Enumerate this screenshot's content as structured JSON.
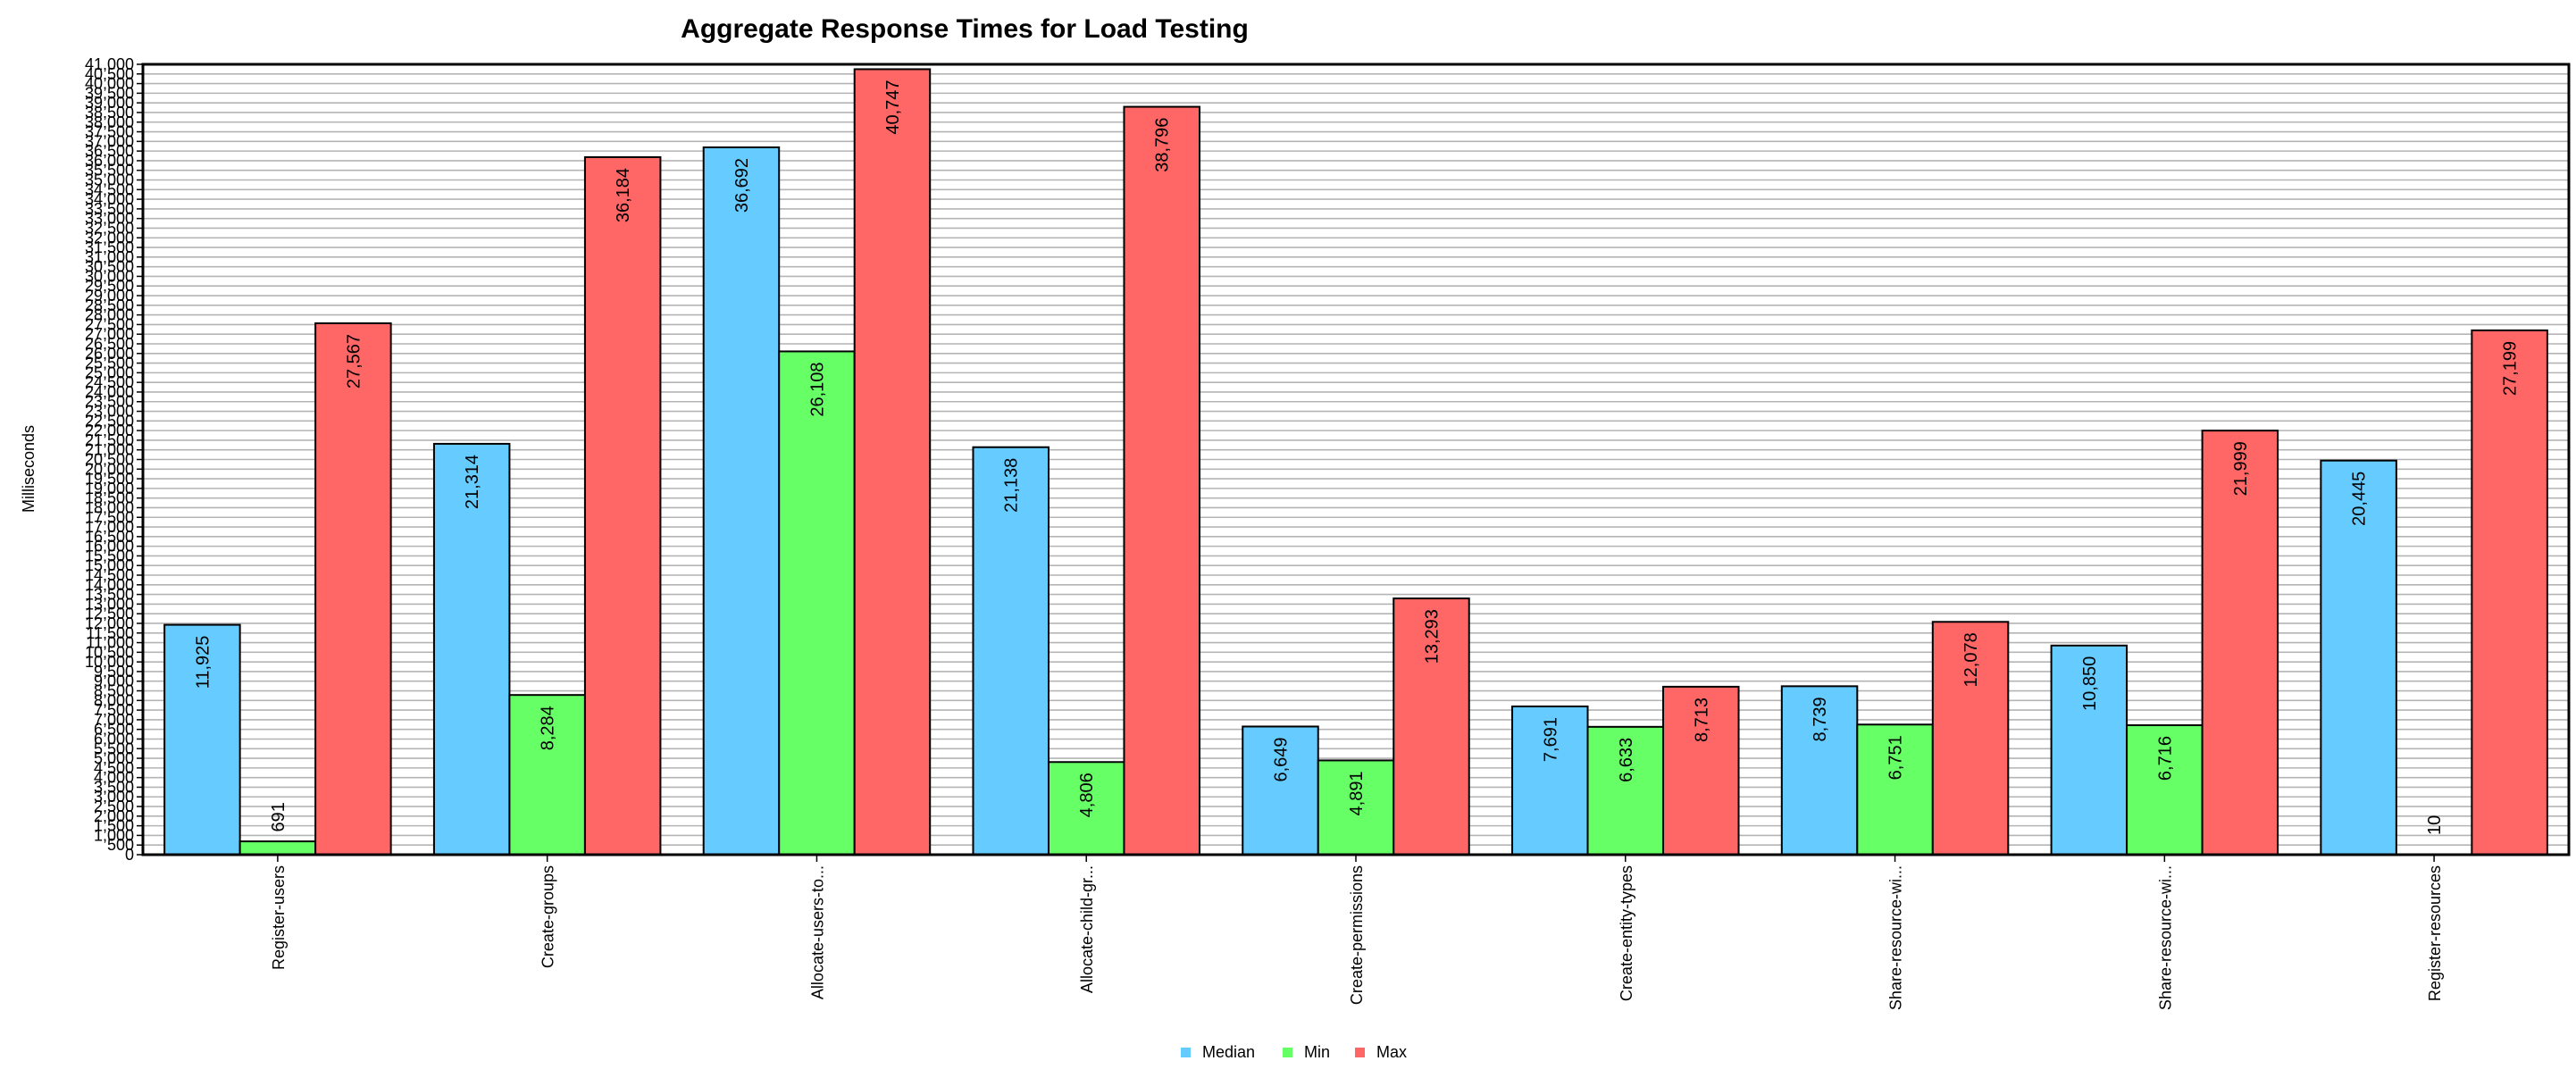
{
  "chart_data": {
    "type": "bar",
    "title": "Aggregate Response Times for Load Testing",
    "xlabel": "",
    "ylabel": "Milliseconds",
    "ylim": [
      0,
      41000
    ],
    "ytick_step": 500,
    "ytick_labels": [
      "0",
      "500",
      "1,000",
      "1,500",
      "2,000",
      "2,500",
      "3,000",
      "3,500",
      "4,000",
      "4,500",
      "5,000",
      "5,500",
      "6,000",
      "6,500",
      "7,000",
      "7,500",
      "8,000",
      "8,500",
      "9,000",
      "9,500",
      "10,000",
      "10,500",
      "11,000",
      "11,500",
      "12,000",
      "12,500",
      "13,000",
      "13,500",
      "14,000",
      "14,500",
      "15,000",
      "15,500",
      "16,000",
      "16,500",
      "17,000",
      "17,500",
      "18,000",
      "18,500",
      "19,000",
      "19,500",
      "20,000",
      "20,500",
      "21,000",
      "21,500",
      "22,000",
      "22,500",
      "23,000",
      "23,500",
      "24,000",
      "24,500",
      "25,000",
      "25,500",
      "26,000",
      "26,500",
      "27,000",
      "27,500",
      "28,000",
      "28,500",
      "29,000",
      "29,500",
      "30,000",
      "30,500",
      "31,000",
      "31,500",
      "32,000",
      "32,500",
      "33,000",
      "33,500",
      "34,000",
      "34,500",
      "35,000",
      "35,500",
      "36,000",
      "36,500",
      "37,000",
      "37,500",
      "38,000",
      "38,500",
      "39,000",
      "39,500",
      "40,000",
      "40,500",
      "41,000"
    ],
    "grid": true,
    "legend_position": "bottom-center",
    "categories": [
      "Register-users",
      "Create-groups",
      "Allocate-users-to...",
      "Allocate-child-gr...",
      "Create-permissions",
      "Create-entity-types",
      "Share-resource-wi...",
      "Share-resource-wi...",
      "Register-resources"
    ],
    "series": [
      {
        "name": "Median",
        "color": "#66ccff",
        "values": [
          11925,
          21314,
          36692,
          21138,
          6649,
          7691,
          8739,
          10850,
          20445
        ],
        "labels": [
          "11,925",
          "21,314",
          "36,692",
          "21,138",
          "6,649",
          "7,691",
          "8,739",
          "10,850",
          "20,445"
        ]
      },
      {
        "name": "Min",
        "color": "#66ff66",
        "values": [
          691,
          8284,
          26108,
          4806,
          4891,
          6633,
          6751,
          6716,
          10
        ],
        "labels": [
          "691",
          "8,284",
          "26,108",
          "4,806",
          "4,891",
          "6,633",
          "6,751",
          "6,716",
          "10"
        ]
      },
      {
        "name": "Max",
        "color": "#ff6666",
        "values": [
          27567,
          36184,
          40747,
          38796,
          13293,
          8713,
          12078,
          21999,
          27199
        ],
        "labels": [
          "27,567",
          "36,184",
          "40,747",
          "38,796",
          "13,293",
          "8,713",
          "12,078",
          "21,999",
          "27,199"
        ]
      }
    ]
  }
}
